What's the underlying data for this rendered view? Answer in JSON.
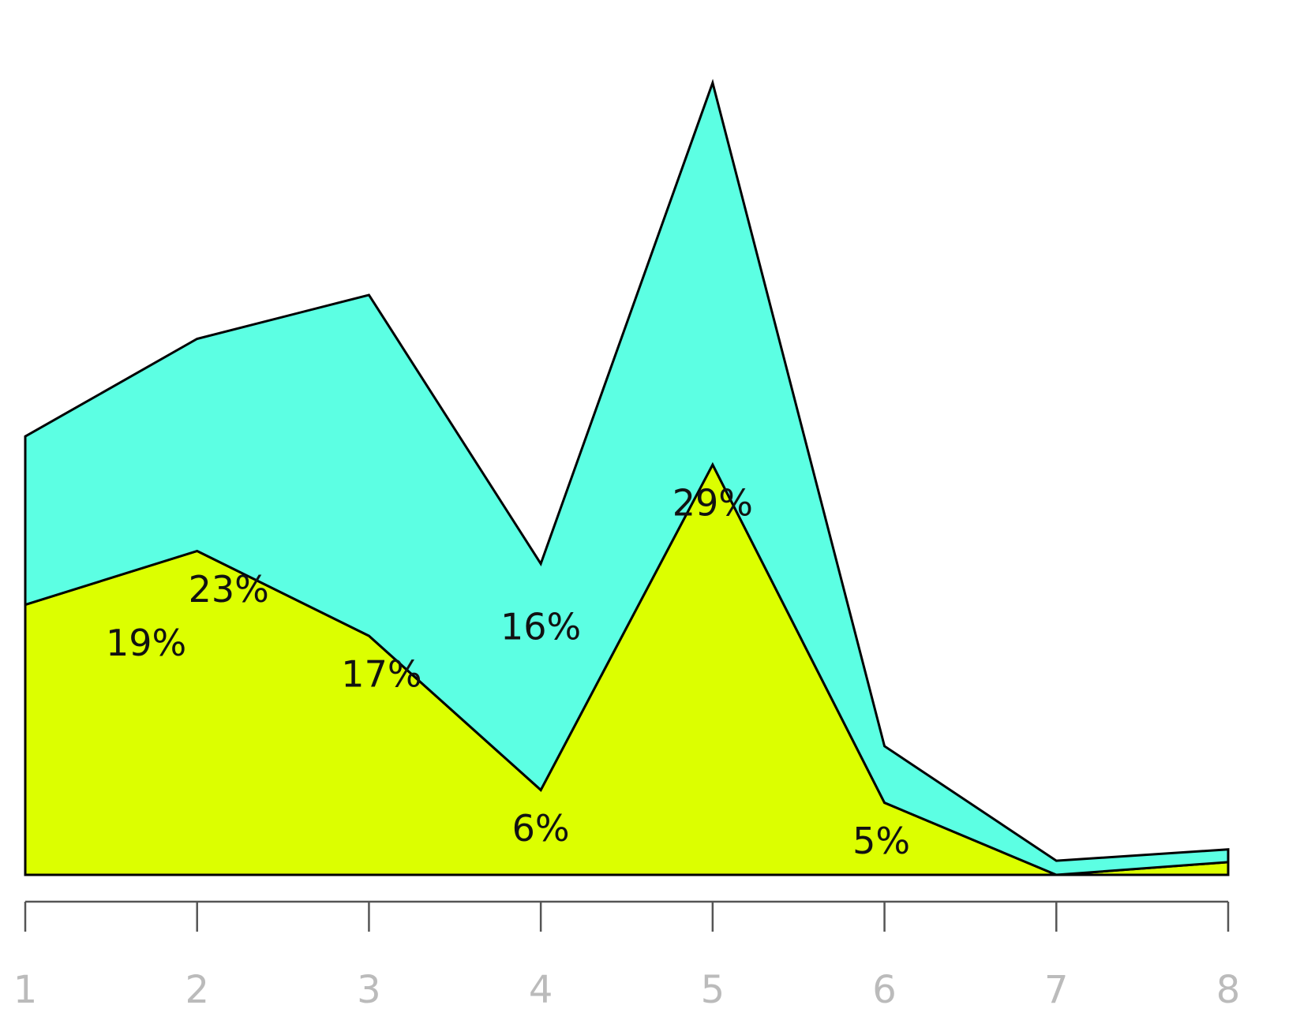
{
  "chart_data": {
    "type": "stacked-area",
    "x": [
      1,
      2,
      3,
      4,
      5,
      6,
      7,
      8
    ],
    "xlim": [
      1,
      8
    ],
    "xticks": [
      1,
      2,
      3,
      4,
      5,
      6,
      7,
      8
    ],
    "series": [
      {
        "color": "#dcff00",
        "values": [
          19.1,
          22.9,
          16.9,
          6.0,
          29.0,
          5.1,
          0,
          0.9
        ],
        "value_labels": [
          "19%",
          "23%",
          "17%",
          "6%",
          "29%",
          "5%",
          null,
          null
        ]
      },
      {
        "color": "#5cffe3",
        "values": [
          11.9,
          15.0,
          24.1,
          16.0,
          27.0,
          4.0,
          1.0,
          0.9
        ],
        "value_labels": [
          null,
          null,
          null,
          "16%",
          null,
          null,
          null,
          null
        ]
      }
    ]
  }
}
